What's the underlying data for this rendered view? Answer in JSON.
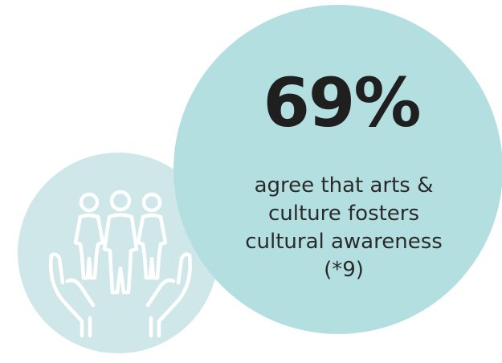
{
  "stat": {
    "value": "69%",
    "description_lines": [
      "agree that arts &",
      "culture fosters",
      "cultural awareness",
      "(*9)"
    ]
  },
  "icon": "people-in-hands-icon",
  "colors": {
    "big_circle": "#b4dfe1",
    "small_circle": "#cfe7e9",
    "icon_stroke": "#ffffff",
    "text": "#2a2a2a"
  }
}
